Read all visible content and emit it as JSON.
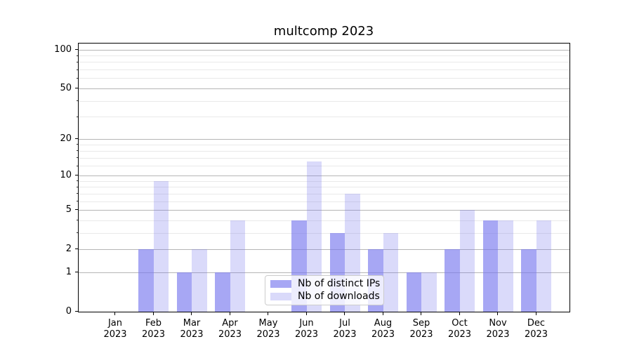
{
  "chart_data": {
    "type": "bar",
    "title": "multcomp 2023",
    "categories": [
      "Jan",
      "Feb",
      "Mar",
      "Apr",
      "May",
      "Jun",
      "Jul",
      "Aug",
      "Sep",
      "Oct",
      "Nov",
      "Dec"
    ],
    "year_label": "2023",
    "series": [
      {
        "name": "Nb of distinct IPs",
        "color": "rgba(120,120,238,0.65)",
        "values": [
          0,
          2,
          1,
          1,
          0,
          4,
          3,
          2,
          1,
          2,
          4,
          2
        ]
      },
      {
        "name": "Nb of downloads",
        "color": "rgba(120,120,238,0.27)",
        "values": [
          0,
          9,
          2,
          4,
          0,
          13,
          7,
          3,
          1,
          5,
          4,
          4
        ]
      }
    ],
    "yscale": "log1p",
    "yticks": [
      0,
      1,
      2,
      5,
      10,
      20,
      50,
      100
    ],
    "minor_yticks": [
      3,
      4,
      6,
      7,
      8,
      9,
      12,
      14,
      16,
      18,
      30,
      40,
      60,
      70,
      80,
      90
    ],
    "ylim": [
      0,
      111.3
    ],
    "grid": true,
    "legend_position": "lower center",
    "colors": {
      "bar_base": "#7878ee",
      "major_grid": "#b5b5b5",
      "minor_grid": "#e9e9e9",
      "spine": "#000000"
    }
  }
}
